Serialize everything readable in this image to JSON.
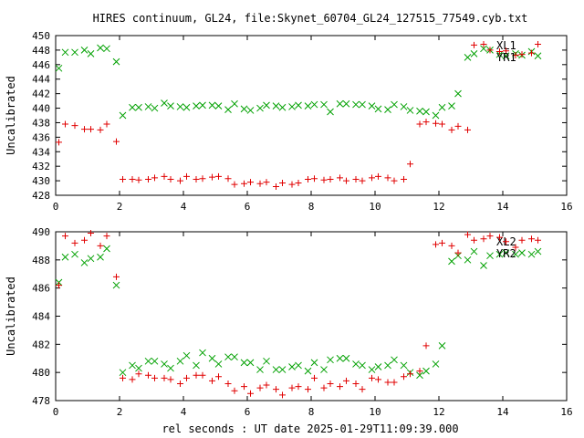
{
  "title": "HIRES continuum, GL24, file:Skynet_60704_GL24_127515_77549.cyb.txt",
  "xlabel": "rel seconds : UT date 2025-01-29T11:09:39.000",
  "colors": {
    "x_series": "#00a000",
    "y_series": "#e00000",
    "axis": "#000000"
  },
  "chart_data": [
    {
      "type": "scatter",
      "ylabel": "Uncalibrated",
      "xlim": [
        0,
        16
      ],
      "ylim": [
        428,
        450
      ],
      "xticks": [
        0,
        2,
        4,
        6,
        8,
        10,
        12,
        14,
        16
      ],
      "yticks": [
        428,
        430,
        432,
        434,
        436,
        438,
        440,
        442,
        444,
        446,
        448,
        450
      ],
      "legend_position": "top-right",
      "series": [
        {
          "name": "XL1",
          "marker": "x",
          "color": "#00a000",
          "x": [
            0.1,
            0.3,
            0.6,
            0.9,
            1.1,
            1.4,
            1.6,
            1.9,
            2.1,
            2.4,
            2.6,
            2.9,
            3.1,
            3.4,
            3.6,
            3.9,
            4.1,
            4.4,
            4.6,
            4.9,
            5.1,
            5.4,
            5.6,
            5.9,
            6.1,
            6.4,
            6.6,
            6.9,
            7.1,
            7.4,
            7.6,
            7.9,
            8.1,
            8.4,
            8.6,
            8.9,
            9.1,
            9.4,
            9.6,
            9.9,
            10.1,
            10.4,
            10.6,
            10.9,
            11.1,
            11.4,
            11.6,
            11.9,
            12.1,
            12.4,
            12.6,
            12.9,
            13.1,
            13.4,
            13.6,
            13.9,
            14.1,
            14.4,
            14.6,
            14.9,
            15.1
          ],
          "y": [
            445.5,
            447.7,
            447.7,
            448.0,
            447.5,
            448.3,
            448.2,
            446.4,
            439.0,
            440.1,
            440.1,
            440.2,
            440.0,
            440.7,
            440.3,
            440.2,
            440.1,
            440.3,
            440.4,
            440.4,
            440.3,
            439.8,
            440.6,
            439.9,
            439.7,
            440.0,
            440.4,
            440.3,
            440.1,
            440.2,
            440.4,
            440.3,
            440.5,
            440.5,
            439.5,
            440.6,
            440.6,
            440.5,
            440.5,
            440.3,
            439.9,
            439.8,
            440.5,
            440.2,
            439.7,
            439.6,
            439.5,
            439.0,
            440.1,
            440.3,
            442.0,
            447.0,
            447.5,
            448.2,
            448.0,
            447.4,
            447.2,
            447.5,
            447.3,
            447.8,
            447.2
          ]
        },
        {
          "name": "YR1",
          "marker": "+",
          "color": "#e00000",
          "x": [
            0.1,
            0.3,
            0.6,
            0.9,
            1.1,
            1.4,
            1.6,
            1.9,
            2.1,
            2.4,
            2.6,
            2.9,
            3.1,
            3.4,
            3.6,
            3.9,
            4.1,
            4.4,
            4.6,
            4.9,
            5.1,
            5.4,
            5.6,
            5.9,
            6.1,
            6.4,
            6.6,
            6.9,
            7.1,
            7.4,
            7.6,
            7.9,
            8.1,
            8.4,
            8.6,
            8.9,
            9.1,
            9.4,
            9.6,
            9.9,
            10.1,
            10.4,
            10.6,
            10.9,
            11.1,
            11.4,
            11.6,
            11.9,
            12.1,
            12.4,
            12.6,
            12.9,
            13.1,
            13.4,
            13.6,
            13.9,
            14.1,
            14.4,
            14.6,
            14.9,
            15.1
          ],
          "y": [
            435.3,
            437.8,
            437.6,
            437.1,
            437.1,
            437.0,
            437.8,
            435.4,
            430.2,
            430.2,
            430.1,
            430.2,
            430.4,
            430.6,
            430.2,
            430.0,
            430.6,
            430.2,
            430.3,
            430.5,
            430.6,
            430.3,
            429.5,
            429.6,
            429.8,
            429.6,
            429.8,
            429.2,
            429.7,
            429.5,
            429.7,
            430.2,
            430.3,
            430.1,
            430.2,
            430.4,
            430.0,
            430.2,
            430.0,
            430.4,
            430.6,
            430.4,
            430.0,
            430.2,
            432.3,
            437.8,
            438.1,
            437.9,
            437.8,
            437.0,
            437.5,
            437.0,
            448.7,
            448.8,
            448.0,
            447.8,
            447.9,
            447.3,
            447.4,
            447.6,
            448.8
          ]
        }
      ]
    },
    {
      "type": "scatter",
      "ylabel": "Uncalibrated",
      "xlim": [
        0,
        16
      ],
      "ylim": [
        478,
        490
      ],
      "xticks": [
        0,
        2,
        4,
        6,
        8,
        10,
        12,
        14,
        16
      ],
      "yticks": [
        478,
        480,
        482,
        484,
        486,
        488,
        490
      ],
      "legend_position": "top-right",
      "series": [
        {
          "name": "XL2",
          "marker": "x",
          "color": "#00a000",
          "x": [
            0.1,
            0.3,
            0.6,
            0.9,
            1.1,
            1.4,
            1.6,
            1.9,
            2.1,
            2.4,
            2.6,
            2.9,
            3.1,
            3.4,
            3.6,
            3.9,
            4.1,
            4.4,
            4.6,
            4.9,
            5.1,
            5.4,
            5.6,
            5.9,
            6.1,
            6.4,
            6.6,
            6.9,
            7.1,
            7.4,
            7.6,
            7.9,
            8.1,
            8.4,
            8.6,
            8.9,
            9.1,
            9.4,
            9.6,
            9.9,
            10.1,
            10.4,
            10.6,
            10.9,
            11.1,
            11.4,
            11.6,
            11.9,
            12.1,
            12.4,
            12.6,
            12.9,
            13.1,
            13.4,
            13.6,
            13.9,
            14.1,
            14.4,
            14.6,
            14.9,
            15.1
          ],
          "y": [
            486.4,
            488.2,
            488.4,
            487.8,
            488.1,
            488.2,
            488.8,
            486.2,
            480.0,
            480.5,
            480.3,
            480.8,
            480.8,
            480.6,
            480.3,
            480.8,
            481.2,
            480.5,
            481.4,
            481.0,
            480.6,
            481.1,
            481.1,
            480.7,
            480.7,
            480.2,
            480.8,
            480.2,
            480.2,
            480.4,
            480.5,
            480.1,
            480.7,
            480.2,
            480.9,
            481.0,
            481.0,
            480.6,
            480.5,
            480.2,
            480.4,
            480.5,
            480.9,
            480.5,
            480.0,
            479.8,
            480.1,
            480.6,
            481.9,
            487.9,
            488.3,
            488.0,
            488.6,
            487.6,
            488.3,
            488.4,
            488.5,
            488.4,
            488.5,
            488.4,
            488.6
          ]
        },
        {
          "name": "YR2",
          "marker": "+",
          "color": "#e00000",
          "x": [
            0.1,
            0.3,
            0.6,
            0.9,
            1.1,
            1.4,
            1.6,
            1.9,
            2.1,
            2.4,
            2.6,
            2.9,
            3.1,
            3.4,
            3.6,
            3.9,
            4.1,
            4.4,
            4.6,
            4.9,
            5.1,
            5.4,
            5.6,
            5.9,
            6.1,
            6.4,
            6.6,
            6.9,
            7.1,
            7.4,
            7.6,
            7.9,
            8.1,
            8.4,
            8.6,
            8.9,
            9.1,
            9.4,
            9.6,
            9.9,
            10.1,
            10.4,
            10.6,
            10.9,
            11.1,
            11.4,
            11.6,
            11.9,
            12.1,
            12.4,
            12.6,
            12.9,
            13.1,
            13.4,
            13.6,
            13.9,
            14.1,
            14.4,
            14.6,
            14.9,
            15.1
          ],
          "y": [
            486.2,
            489.7,
            489.2,
            489.4,
            489.9,
            489.0,
            489.7,
            486.8,
            479.6,
            479.5,
            479.9,
            479.8,
            479.6,
            479.6,
            479.5,
            479.2,
            479.6,
            479.8,
            479.8,
            479.4,
            479.7,
            479.2,
            478.7,
            479.0,
            478.5,
            478.9,
            479.1,
            478.8,
            478.4,
            478.9,
            479.0,
            478.8,
            479.6,
            478.9,
            479.2,
            479.0,
            479.4,
            479.2,
            478.8,
            479.6,
            479.5,
            479.3,
            479.3,
            479.7,
            479.9,
            480.1,
            481.9,
            489.1,
            489.2,
            489.0,
            488.5,
            489.8,
            489.4,
            489.5,
            489.7,
            489.6,
            489.3,
            488.9,
            489.4,
            489.5,
            489.4
          ]
        }
      ]
    }
  ]
}
